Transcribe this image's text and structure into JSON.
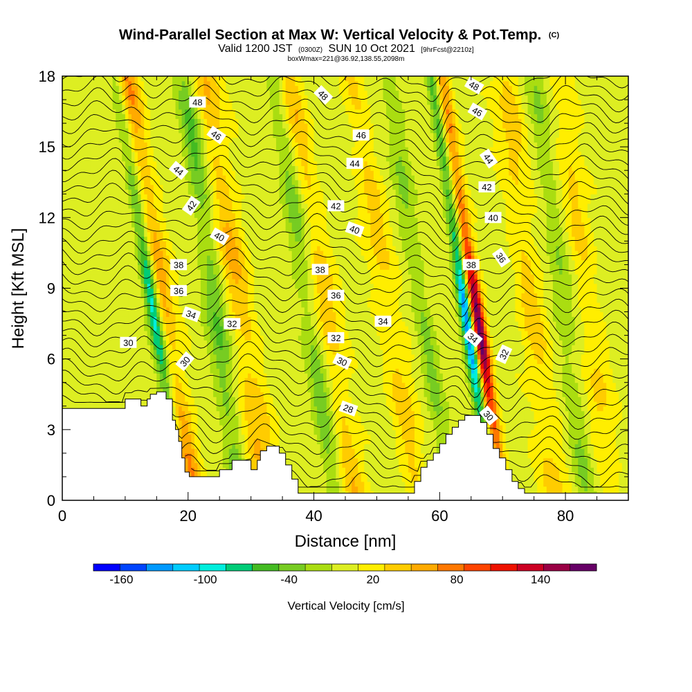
{
  "chart_data": {
    "type": "heatmap",
    "title": "Wind-Parallel Section at Max W: Vertical Velocity & Pot.Temp.",
    "title_mark": "(C)",
    "subtitle_parts": [
      "Valid 1200 JST",
      "(0300Z)",
      "SUN 10 Oct 2021",
      "[9hrFcst@2210z]"
    ],
    "subtitle2": "boxWmax=221@36.92,138.55,2098m",
    "xlabel": "Distance [nm]",
    "ylabel": "Height [Kft MSL]",
    "xlim": [
      0,
      90
    ],
    "ylim": [
      0,
      18
    ],
    "x_ticks": [
      0,
      20,
      40,
      60,
      80
    ],
    "y_ticks": [
      0,
      3,
      6,
      9,
      12,
      15,
      18
    ],
    "colorbar": {
      "title": "Vertical Velocity [cm/s]",
      "range": [
        -180,
        180
      ],
      "step": 20,
      "labeled_ticks": [
        -160,
        -100,
        -40,
        20,
        80,
        140
      ],
      "colors": [
        "#0000ff",
        "#0044ff",
        "#0099ff",
        "#00ccff",
        "#00eedd",
        "#00cc77",
        "#44bb22",
        "#77cc22",
        "#aadd11",
        "#ddee22",
        "#ffee00",
        "#ffcc00",
        "#ffaa00",
        "#ff7700",
        "#ff4400",
        "#ee1100",
        "#cc0022",
        "#990044",
        "#660066"
      ]
    },
    "terrain_kft": [
      [
        0,
        3.9
      ],
      [
        10,
        3.9
      ],
      [
        10,
        4.3
      ],
      [
        12.5,
        4.3
      ],
      [
        12.5,
        4.0
      ],
      [
        13.5,
        4.0
      ],
      [
        13.5,
        4.3
      ],
      [
        14,
        4.3
      ],
      [
        14,
        4.5
      ],
      [
        15,
        4.5
      ],
      [
        15,
        4.6
      ],
      [
        16.5,
        4.6
      ],
      [
        16.5,
        4.3
      ],
      [
        17.5,
        4.3
      ],
      [
        17.5,
        3.4
      ],
      [
        18,
        3.4
      ],
      [
        18,
        3.0
      ],
      [
        18.5,
        3.0
      ],
      [
        18.5,
        2.5
      ],
      [
        19,
        2.5
      ],
      [
        19,
        1.8
      ],
      [
        19.5,
        1.8
      ],
      [
        19.5,
        1.2
      ],
      [
        20.2,
        1.2
      ],
      [
        20.2,
        1.0
      ],
      [
        25,
        1.0
      ],
      [
        25,
        1.3
      ],
      [
        27,
        1.3
      ],
      [
        27,
        1.7
      ],
      [
        30,
        1.7
      ],
      [
        30,
        1.3
      ],
      [
        31,
        1.3
      ],
      [
        31,
        1.7
      ],
      [
        31.5,
        1.7
      ],
      [
        31.5,
        2.1
      ],
      [
        32.5,
        2.1
      ],
      [
        32.5,
        2.3
      ],
      [
        34.5,
        2.3
      ],
      [
        34.5,
        2.0
      ],
      [
        35.5,
        2.0
      ],
      [
        35.5,
        1.5
      ],
      [
        36.5,
        1.5
      ],
      [
        36.5,
        0.9
      ],
      [
        37.5,
        0.9
      ],
      [
        37.5,
        0.3
      ],
      [
        56,
        0.3
      ],
      [
        56,
        0.8
      ],
      [
        57,
        0.8
      ],
      [
        57,
        1.4
      ],
      [
        58,
        1.4
      ],
      [
        58,
        1.7
      ],
      [
        59,
        1.7
      ],
      [
        59,
        2.0
      ],
      [
        60,
        2.0
      ],
      [
        60,
        2.4
      ],
      [
        61,
        2.4
      ],
      [
        61,
        2.8
      ],
      [
        62,
        2.8
      ],
      [
        62,
        3.1
      ],
      [
        63,
        3.1
      ],
      [
        63,
        3.4
      ],
      [
        64,
        3.4
      ],
      [
        64,
        3.6
      ],
      [
        66.5,
        3.6
      ],
      [
        66.5,
        3.3
      ],
      [
        67.5,
        3.3
      ],
      [
        67.5,
        2.8
      ],
      [
        68.5,
        2.8
      ],
      [
        68.5,
        2.2
      ],
      [
        69.5,
        2.2
      ],
      [
        69.5,
        1.8
      ],
      [
        70.5,
        1.8
      ],
      [
        70.5,
        1.3
      ],
      [
        71.5,
        1.3
      ],
      [
        71.5,
        0.8
      ],
      [
        72.5,
        0.8
      ],
      [
        72.5,
        0.5
      ],
      [
        73.5,
        0.5
      ],
      [
        73.5,
        0.3
      ],
      [
        90,
        0.3
      ]
    ],
    "updraft_bands": [
      {
        "x0": 19.0,
        "y0": 3.3,
        "slope": -0.6,
        "width": 1.9,
        "amp": 70
      },
      {
        "x0": 31.0,
        "y0": 3.0,
        "slope": -0.55,
        "width": 2.3,
        "amp": 55
      },
      {
        "x0": 45.0,
        "y0": 3.0,
        "slope": -0.6,
        "width": 2.1,
        "amp": 45
      },
      {
        "x0": 55.0,
        "y0": 3.0,
        "slope": -0.6,
        "width": 2.0,
        "amp": 40
      },
      {
        "x0": 68.3,
        "y0": 3.6,
        "slope": -0.55,
        "width": 1.1,
        "amp": 190
      },
      {
        "x0": 77.0,
        "y0": 3.0,
        "slope": -0.45,
        "width": 2.2,
        "amp": 40
      },
      {
        "x0": 86.0,
        "y0": 3.0,
        "slope": -0.45,
        "width": 2.0,
        "amp": 35
      }
    ],
    "downdraft_bands": [
      {
        "x0": 16.6,
        "y0": 4.6,
        "slope": -0.6,
        "width": 1.1,
        "amp": -130
      },
      {
        "x0": 27.0,
        "y0": 3.0,
        "slope": -0.5,
        "width": 1.7,
        "amp": -60
      },
      {
        "x0": 42.0,
        "y0": 3.0,
        "slope": -0.55,
        "width": 1.6,
        "amp": -50
      },
      {
        "x0": 60.0,
        "y0": 3.0,
        "slope": -0.55,
        "width": 1.5,
        "amp": -40
      },
      {
        "x0": 66.6,
        "y0": 3.6,
        "slope": -0.55,
        "width": 0.95,
        "amp": -165
      },
      {
        "x0": 82.0,
        "y0": 3.0,
        "slope": -0.45,
        "width": 1.7,
        "amp": -35
      }
    ],
    "contour_interval": 0.5,
    "contour_labels": [
      {
        "text": "48",
        "x": 21.5,
        "y": 16.9,
        "angle": 0
      },
      {
        "text": "46",
        "x": 24.5,
        "y": 15.5,
        "angle": 35
      },
      {
        "text": "44",
        "x": 18.5,
        "y": 14.0,
        "angle": 40
      },
      {
        "text": "42",
        "x": 20.5,
        "y": 12.5,
        "angle": -55
      },
      {
        "text": "40",
        "x": 25.0,
        "y": 11.2,
        "angle": 30
      },
      {
        "text": "38",
        "x": 18.5,
        "y": 10.0,
        "angle": 0
      },
      {
        "text": "36",
        "x": 18.5,
        "y": 8.9,
        "angle": 0
      },
      {
        "text": "34",
        "x": 20.5,
        "y": 7.9,
        "angle": 20
      },
      {
        "text": "32",
        "x": 27.0,
        "y": 7.5,
        "angle": 0
      },
      {
        "text": "30",
        "x": 10.5,
        "y": 6.7,
        "angle": 0
      },
      {
        "text": "30",
        "x": 19.5,
        "y": 5.9,
        "angle": -50
      },
      {
        "text": "48",
        "x": 41.5,
        "y": 17.2,
        "angle": 45
      },
      {
        "text": "46",
        "x": 47.5,
        "y": 15.5,
        "angle": 0
      },
      {
        "text": "44",
        "x": 46.5,
        "y": 14.3,
        "angle": 0
      },
      {
        "text": "42",
        "x": 43.5,
        "y": 12.5,
        "angle": 0
      },
      {
        "text": "40",
        "x": 46.5,
        "y": 11.5,
        "angle": 20
      },
      {
        "text": "38",
        "x": 41.0,
        "y": 9.8,
        "angle": 0
      },
      {
        "text": "36",
        "x": 43.5,
        "y": 8.7,
        "angle": 0
      },
      {
        "text": "34",
        "x": 51.0,
        "y": 7.6,
        "angle": 0
      },
      {
        "text": "32",
        "x": 43.5,
        "y": 6.9,
        "angle": 0
      },
      {
        "text": "30",
        "x": 44.5,
        "y": 5.9,
        "angle": 25
      },
      {
        "text": "28",
        "x": 45.5,
        "y": 3.9,
        "angle": 20
      },
      {
        "text": "48",
        "x": 65.5,
        "y": 17.6,
        "angle": 30
      },
      {
        "text": "46",
        "x": 66.0,
        "y": 16.5,
        "angle": 30
      },
      {
        "text": "44",
        "x": 67.8,
        "y": 14.5,
        "angle": 55
      },
      {
        "text": "42",
        "x": 67.5,
        "y": 13.3,
        "angle": 0
      },
      {
        "text": "40",
        "x": 68.5,
        "y": 12.0,
        "angle": 0
      },
      {
        "text": "38",
        "x": 65.0,
        "y": 10.0,
        "angle": 0
      },
      {
        "text": "36",
        "x": 69.8,
        "y": 10.3,
        "angle": 55
      },
      {
        "text": "34",
        "x": 65.3,
        "y": 6.9,
        "angle": 40
      },
      {
        "text": "32",
        "x": 70.2,
        "y": 6.2,
        "angle": -65
      },
      {
        "text": "30",
        "x": 67.8,
        "y": 3.6,
        "angle": 50
      }
    ]
  }
}
